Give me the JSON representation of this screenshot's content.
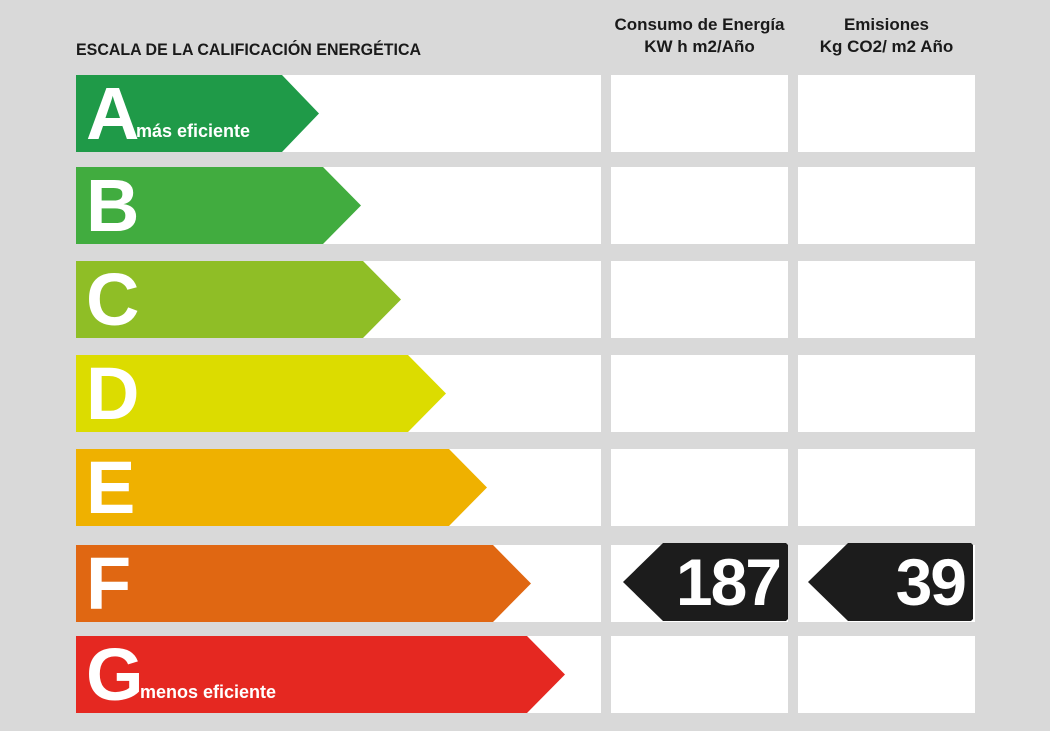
{
  "header": {
    "scale_title": "ESCALA DE LA CALIFICACIÓN ENERGÉTICA",
    "energy_line1": "Consumo de Energía",
    "energy_line2": "KW h m2/Año",
    "emissions_line1": "Emisiones",
    "emissions_line2": "Kg CO2/ m2 Año"
  },
  "ratings": [
    {
      "letter": "A",
      "sublabel": "más eficiente",
      "color": "#1f9a48"
    },
    {
      "letter": "B",
      "sublabel": "",
      "color": "#41ac3f"
    },
    {
      "letter": "C",
      "sublabel": "",
      "color": "#8fbe26"
    },
    {
      "letter": "D",
      "sublabel": "",
      "color": "#dcdc00"
    },
    {
      "letter": "E",
      "sublabel": "",
      "color": "#efb100"
    },
    {
      "letter": "F",
      "sublabel": "",
      "color": "#e06712"
    },
    {
      "letter": "G",
      "sublabel": "menos eficiente",
      "color": "#e52821"
    }
  ],
  "result": {
    "rating": "F",
    "energy_value": "187",
    "emissions_value": "39",
    "marker_color": "#1c1c1c"
  }
}
